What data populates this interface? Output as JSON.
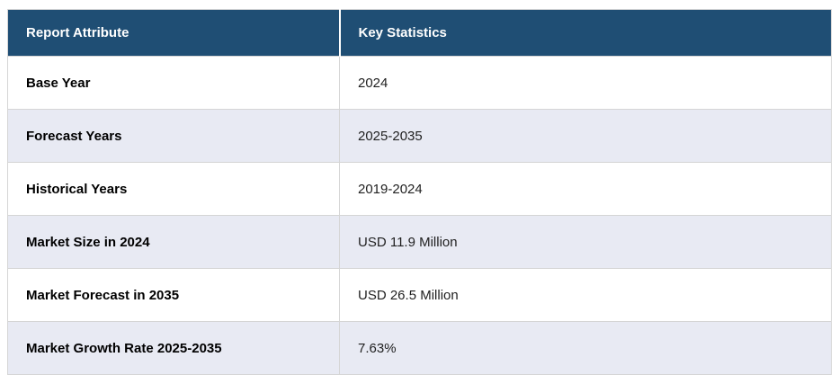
{
  "chart_data": {
    "type": "table",
    "columns": [
      "Report Attribute",
      "Key Statistics"
    ],
    "rows": [
      [
        "Base Year",
        "2024"
      ],
      [
        "Forecast Years",
        "2025-2035"
      ],
      [
        "Historical Years",
        "2019-2024"
      ],
      [
        "Market Size in 2024",
        "USD 11.9 Million"
      ],
      [
        "Market Forecast in 2035",
        "USD 26.5 Million"
      ],
      [
        "Market Growth Rate 2025-2035",
        "7.63%"
      ]
    ]
  },
  "colors": {
    "header_bg": "#1f4e74",
    "header_text": "#ffffff",
    "row_bg": "#ffffff",
    "row_alt_bg": "#e8eaf3",
    "border": "#d5d5d5",
    "attribute_text": "#000000",
    "value_text": "#1f1f1f"
  }
}
